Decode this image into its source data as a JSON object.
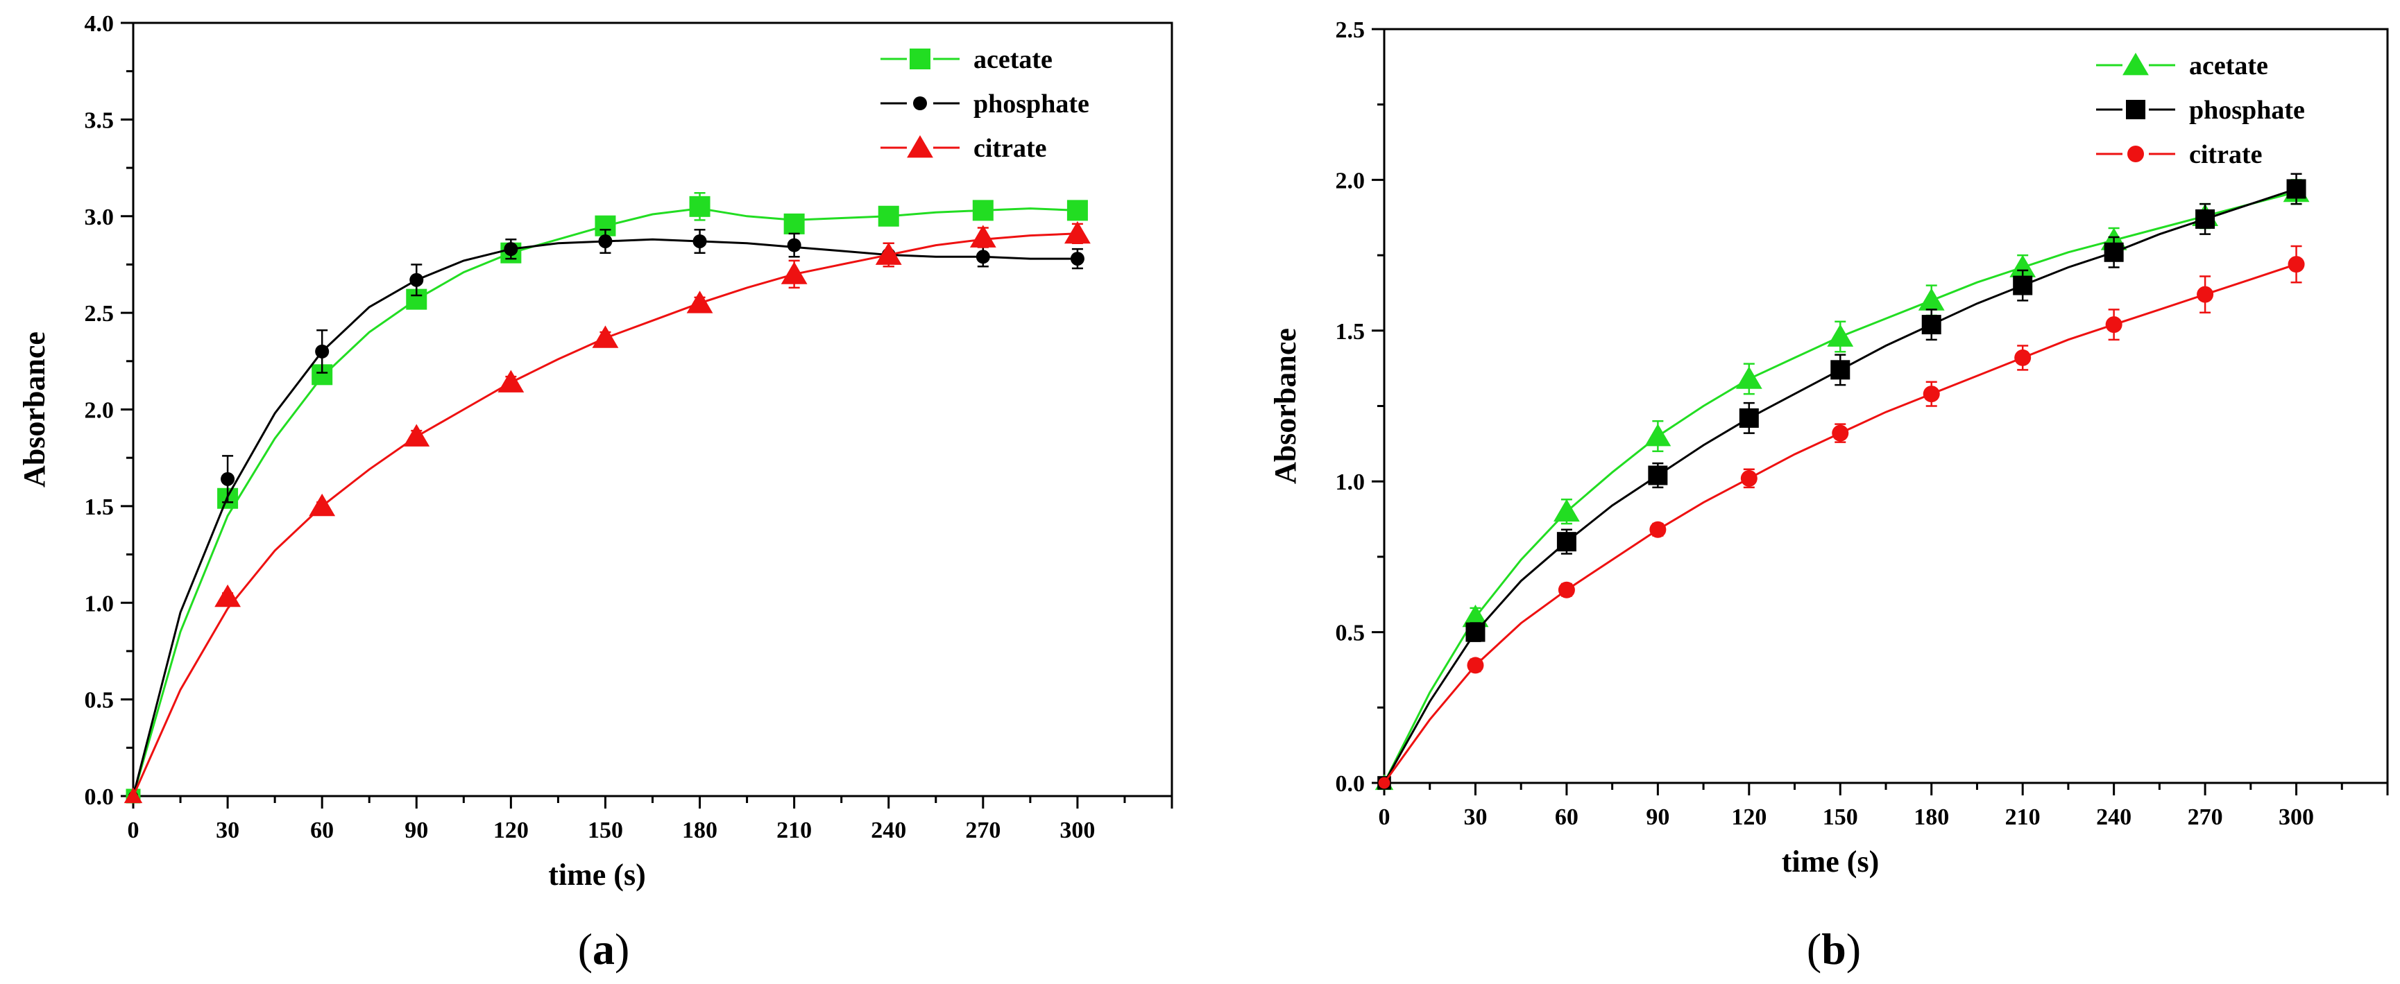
{
  "chart_data": [
    {
      "panel": "(a)",
      "panel_letter": "a",
      "type": "line",
      "xlabel": "time (s)",
      "ylabel": "Absorbance",
      "xlim": [
        0,
        330
      ],
      "ylim": [
        0,
        4.0
      ],
      "xticks": [
        0,
        30,
        60,
        90,
        120,
        150,
        180,
        210,
        240,
        270,
        300
      ],
      "yticks": [
        "0.0",
        "0.5",
        "1.0",
        "1.5",
        "2.0",
        "2.5",
        "3.0",
        "3.5",
        "4.0"
      ],
      "legend_position": "top-right",
      "series": [
        {
          "name": "acetate",
          "color": "#22dd22",
          "marker": "square",
          "x": [
            0,
            30,
            60,
            90,
            120,
            150,
            180,
            210,
            240,
            270,
            300
          ],
          "y": [
            0,
            1.54,
            2.18,
            2.57,
            2.81,
            2.95,
            3.05,
            2.96,
            3.0,
            3.03,
            3.03
          ],
          "err": [
            0,
            0.03,
            0.04,
            0.04,
            0.04,
            0.03,
            0.07,
            0.03,
            0.04,
            0.03,
            0.04
          ],
          "curve": [
            [
              0,
              0
            ],
            [
              15,
              0.85
            ],
            [
              30,
              1.45
            ],
            [
              45,
              1.85
            ],
            [
              60,
              2.17
            ],
            [
              75,
              2.4
            ],
            [
              90,
              2.57
            ],
            [
              105,
              2.71
            ],
            [
              120,
              2.81
            ],
            [
              135,
              2.88
            ],
            [
              150,
              2.95
            ],
            [
              165,
              3.01
            ],
            [
              180,
              3.04
            ],
            [
              195,
              3.0
            ],
            [
              210,
              2.98
            ],
            [
              225,
              2.99
            ],
            [
              240,
              3.0
            ],
            [
              255,
              3.02
            ],
            [
              270,
              3.03
            ],
            [
              285,
              3.04
            ],
            [
              300,
              3.03
            ]
          ]
        },
        {
          "name": "phosphate",
          "color": "#000000",
          "marker": "circle",
          "x": [
            0,
            30,
            60,
            90,
            120,
            150,
            180,
            210,
            240,
            270,
            300
          ],
          "y": [
            0,
            1.64,
            2.3,
            2.67,
            2.83,
            2.87,
            2.87,
            2.85,
            2.8,
            2.79,
            2.78
          ],
          "err": [
            0,
            0.12,
            0.11,
            0.08,
            0.05,
            0.06,
            0.06,
            0.06,
            0.06,
            0.05,
            0.05
          ],
          "curve": [
            [
              0,
              0
            ],
            [
              15,
              0.95
            ],
            [
              30,
              1.55
            ],
            [
              45,
              1.98
            ],
            [
              60,
              2.3
            ],
            [
              75,
              2.53
            ],
            [
              90,
              2.67
            ],
            [
              105,
              2.77
            ],
            [
              120,
              2.83
            ],
            [
              135,
              2.86
            ],
            [
              150,
              2.87
            ],
            [
              165,
              2.88
            ],
            [
              180,
              2.87
            ],
            [
              195,
              2.86
            ],
            [
              210,
              2.84
            ],
            [
              225,
              2.82
            ],
            [
              240,
              2.8
            ],
            [
              255,
              2.79
            ],
            [
              270,
              2.79
            ],
            [
              285,
              2.78
            ],
            [
              300,
              2.78
            ]
          ]
        },
        {
          "name": "citrate",
          "color": "#ee1111",
          "marker": "triangle",
          "x": [
            0,
            30,
            60,
            90,
            120,
            150,
            180,
            210,
            240,
            270,
            300
          ],
          "y": [
            0,
            1.03,
            1.5,
            1.86,
            2.14,
            2.37,
            2.55,
            2.7,
            2.8,
            2.89,
            2.91
          ],
          "err": [
            0,
            0.02,
            0.02,
            0.03,
            0.03,
            0.03,
            0.03,
            0.07,
            0.06,
            0.05,
            0.05
          ],
          "curve": [
            [
              0,
              0
            ],
            [
              15,
              0.55
            ],
            [
              30,
              0.97
            ],
            [
              45,
              1.27
            ],
            [
              60,
              1.5
            ],
            [
              75,
              1.69
            ],
            [
              90,
              1.86
            ],
            [
              105,
              2.0
            ],
            [
              120,
              2.14
            ],
            [
              135,
              2.26
            ],
            [
              150,
              2.37
            ],
            [
              165,
              2.46
            ],
            [
              180,
              2.55
            ],
            [
              195,
              2.63
            ],
            [
              210,
              2.7
            ],
            [
              225,
              2.75
            ],
            [
              240,
              2.8
            ],
            [
              255,
              2.85
            ],
            [
              270,
              2.88
            ],
            [
              285,
              2.9
            ],
            [
              300,
              2.91
            ]
          ]
        }
      ]
    },
    {
      "panel": "(b)",
      "panel_letter": "b",
      "type": "line",
      "xlabel": "time (s)",
      "ylabel": "Absorbance",
      "xlim": [
        0,
        330
      ],
      "ylim": [
        0,
        2.5
      ],
      "xticks": [
        0,
        30,
        60,
        90,
        120,
        150,
        180,
        210,
        240,
        270,
        300
      ],
      "yticks": [
        "0.0",
        "0.5",
        "1.0",
        "1.5",
        "2.0",
        "2.5"
      ],
      "legend_position": "top-right",
      "series": [
        {
          "name": "acetate",
          "color": "#22dd22",
          "marker": "triangle",
          "x": [
            0,
            30,
            60,
            90,
            120,
            150,
            180,
            210,
            240,
            270,
            300
          ],
          "y": [
            0,
            0.55,
            0.9,
            1.15,
            1.34,
            1.48,
            1.6,
            1.71,
            1.8,
            1.88,
            1.96
          ],
          "err": [
            0,
            0.03,
            0.04,
            0.05,
            0.05,
            0.05,
            0.05,
            0.04,
            0.04,
            0.04,
            0.04
          ],
          "curve": [
            [
              0,
              0
            ],
            [
              15,
              0.3
            ],
            [
              30,
              0.55
            ],
            [
              45,
              0.74
            ],
            [
              60,
              0.9
            ],
            [
              75,
              1.03
            ],
            [
              90,
              1.15
            ],
            [
              105,
              1.25
            ],
            [
              120,
              1.34
            ],
            [
              135,
              1.41
            ],
            [
              150,
              1.48
            ],
            [
              165,
              1.54
            ],
            [
              180,
              1.6
            ],
            [
              195,
              1.66
            ],
            [
              210,
              1.71
            ],
            [
              225,
              1.76
            ],
            [
              240,
              1.8
            ],
            [
              255,
              1.84
            ],
            [
              270,
              1.88
            ],
            [
              285,
              1.92
            ],
            [
              300,
              1.96
            ]
          ]
        },
        {
          "name": "phosphate",
          "color": "#000000",
          "marker": "square",
          "x": [
            0,
            30,
            60,
            90,
            120,
            150,
            180,
            210,
            240,
            270,
            300
          ],
          "y": [
            0,
            0.5,
            0.8,
            1.02,
            1.21,
            1.37,
            1.52,
            1.65,
            1.76,
            1.87,
            1.97
          ],
          "err": [
            0,
            0.03,
            0.04,
            0.04,
            0.05,
            0.05,
            0.05,
            0.05,
            0.05,
            0.05,
            0.05
          ],
          "curve": [
            [
              0,
              0
            ],
            [
              15,
              0.27
            ],
            [
              30,
              0.5
            ],
            [
              45,
              0.67
            ],
            [
              60,
              0.8
            ],
            [
              75,
              0.92
            ],
            [
              90,
              1.02
            ],
            [
              105,
              1.12
            ],
            [
              120,
              1.21
            ],
            [
              135,
              1.29
            ],
            [
              150,
              1.37
            ],
            [
              165,
              1.45
            ],
            [
              180,
              1.52
            ],
            [
              195,
              1.59
            ],
            [
              210,
              1.65
            ],
            [
              225,
              1.71
            ],
            [
              240,
              1.76
            ],
            [
              255,
              1.82
            ],
            [
              270,
              1.87
            ],
            [
              285,
              1.92
            ],
            [
              300,
              1.97
            ]
          ]
        },
        {
          "name": "citrate",
          "color": "#ee1111",
          "marker": "circle",
          "x": [
            0,
            30,
            60,
            90,
            120,
            150,
            180,
            210,
            240,
            270,
            300
          ],
          "y": [
            0,
            0.39,
            0.64,
            0.84,
            1.01,
            1.16,
            1.29,
            1.41,
            1.52,
            1.62,
            1.72
          ],
          "err": [
            0,
            0.02,
            0.02,
            0.02,
            0.03,
            0.03,
            0.04,
            0.04,
            0.05,
            0.06,
            0.06
          ],
          "curve": [
            [
              0,
              0
            ],
            [
              15,
              0.21
            ],
            [
              30,
              0.39
            ],
            [
              45,
              0.53
            ],
            [
              60,
              0.64
            ],
            [
              75,
              0.74
            ],
            [
              90,
              0.84
            ],
            [
              105,
              0.93
            ],
            [
              120,
              1.01
            ],
            [
              135,
              1.09
            ],
            [
              150,
              1.16
            ],
            [
              165,
              1.23
            ],
            [
              180,
              1.29
            ],
            [
              195,
              1.35
            ],
            [
              210,
              1.41
            ],
            [
              225,
              1.47
            ],
            [
              240,
              1.52
            ],
            [
              255,
              1.57
            ],
            [
              270,
              1.62
            ],
            [
              285,
              1.67
            ],
            [
              300,
              1.72
            ]
          ]
        }
      ]
    }
  ]
}
